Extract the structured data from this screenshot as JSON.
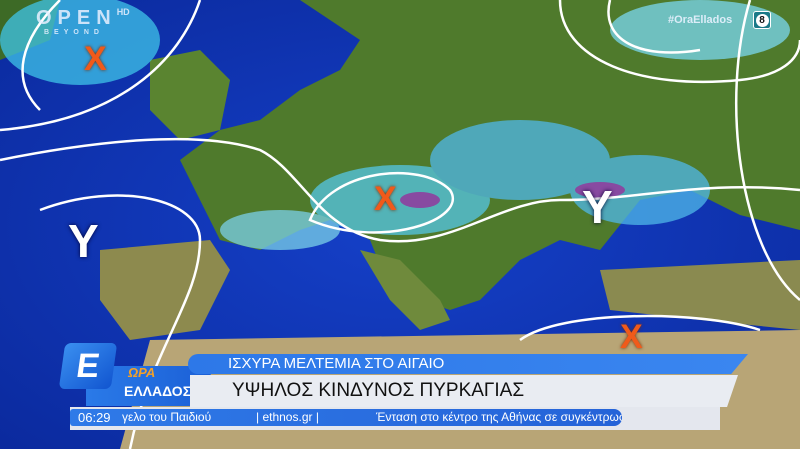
{
  "channel": {
    "logo_text": "OPEN",
    "logo_hd": "HD",
    "logo_sub": "BEYOND",
    "hashtag": "#OraEllados",
    "rating": "8"
  },
  "weather_map": {
    "pressure_systems": [
      {
        "type": "low",
        "label": "X",
        "color": "#f05a1a"
      },
      {
        "type": "low",
        "label": "X",
        "color": "#f05a1a"
      },
      {
        "type": "low",
        "label": "X",
        "color": "#f05a1a"
      },
      {
        "type": "high",
        "label": "Y",
        "color": "#ffffff"
      },
      {
        "type": "high",
        "label": "Y",
        "color": "#ffffff"
      }
    ]
  },
  "show": {
    "brand_icon": "Ε",
    "title_line1": "ΩΡΑ",
    "title_line2": "ΕΛΛΑΔΟΣ"
  },
  "headline": {
    "top": "ΙΣΧΥΡΑ ΜΕΛΤΕΜΙΑ ΣΤΟ ΑΙΓΑΙΟ",
    "main": "ΥΨΗΛΟΣ ΚΙΝΔΥΝΟΣ ΠΥΡΚΑΓΙΑΣ"
  },
  "ticker": {
    "time": "06:29",
    "items": [
      "γελο του Παιδιού",
      "| ethnos.gr |",
      "Ένταση στο κέντρο της Αθήνας σε συγκέντρωση"
    ]
  }
}
